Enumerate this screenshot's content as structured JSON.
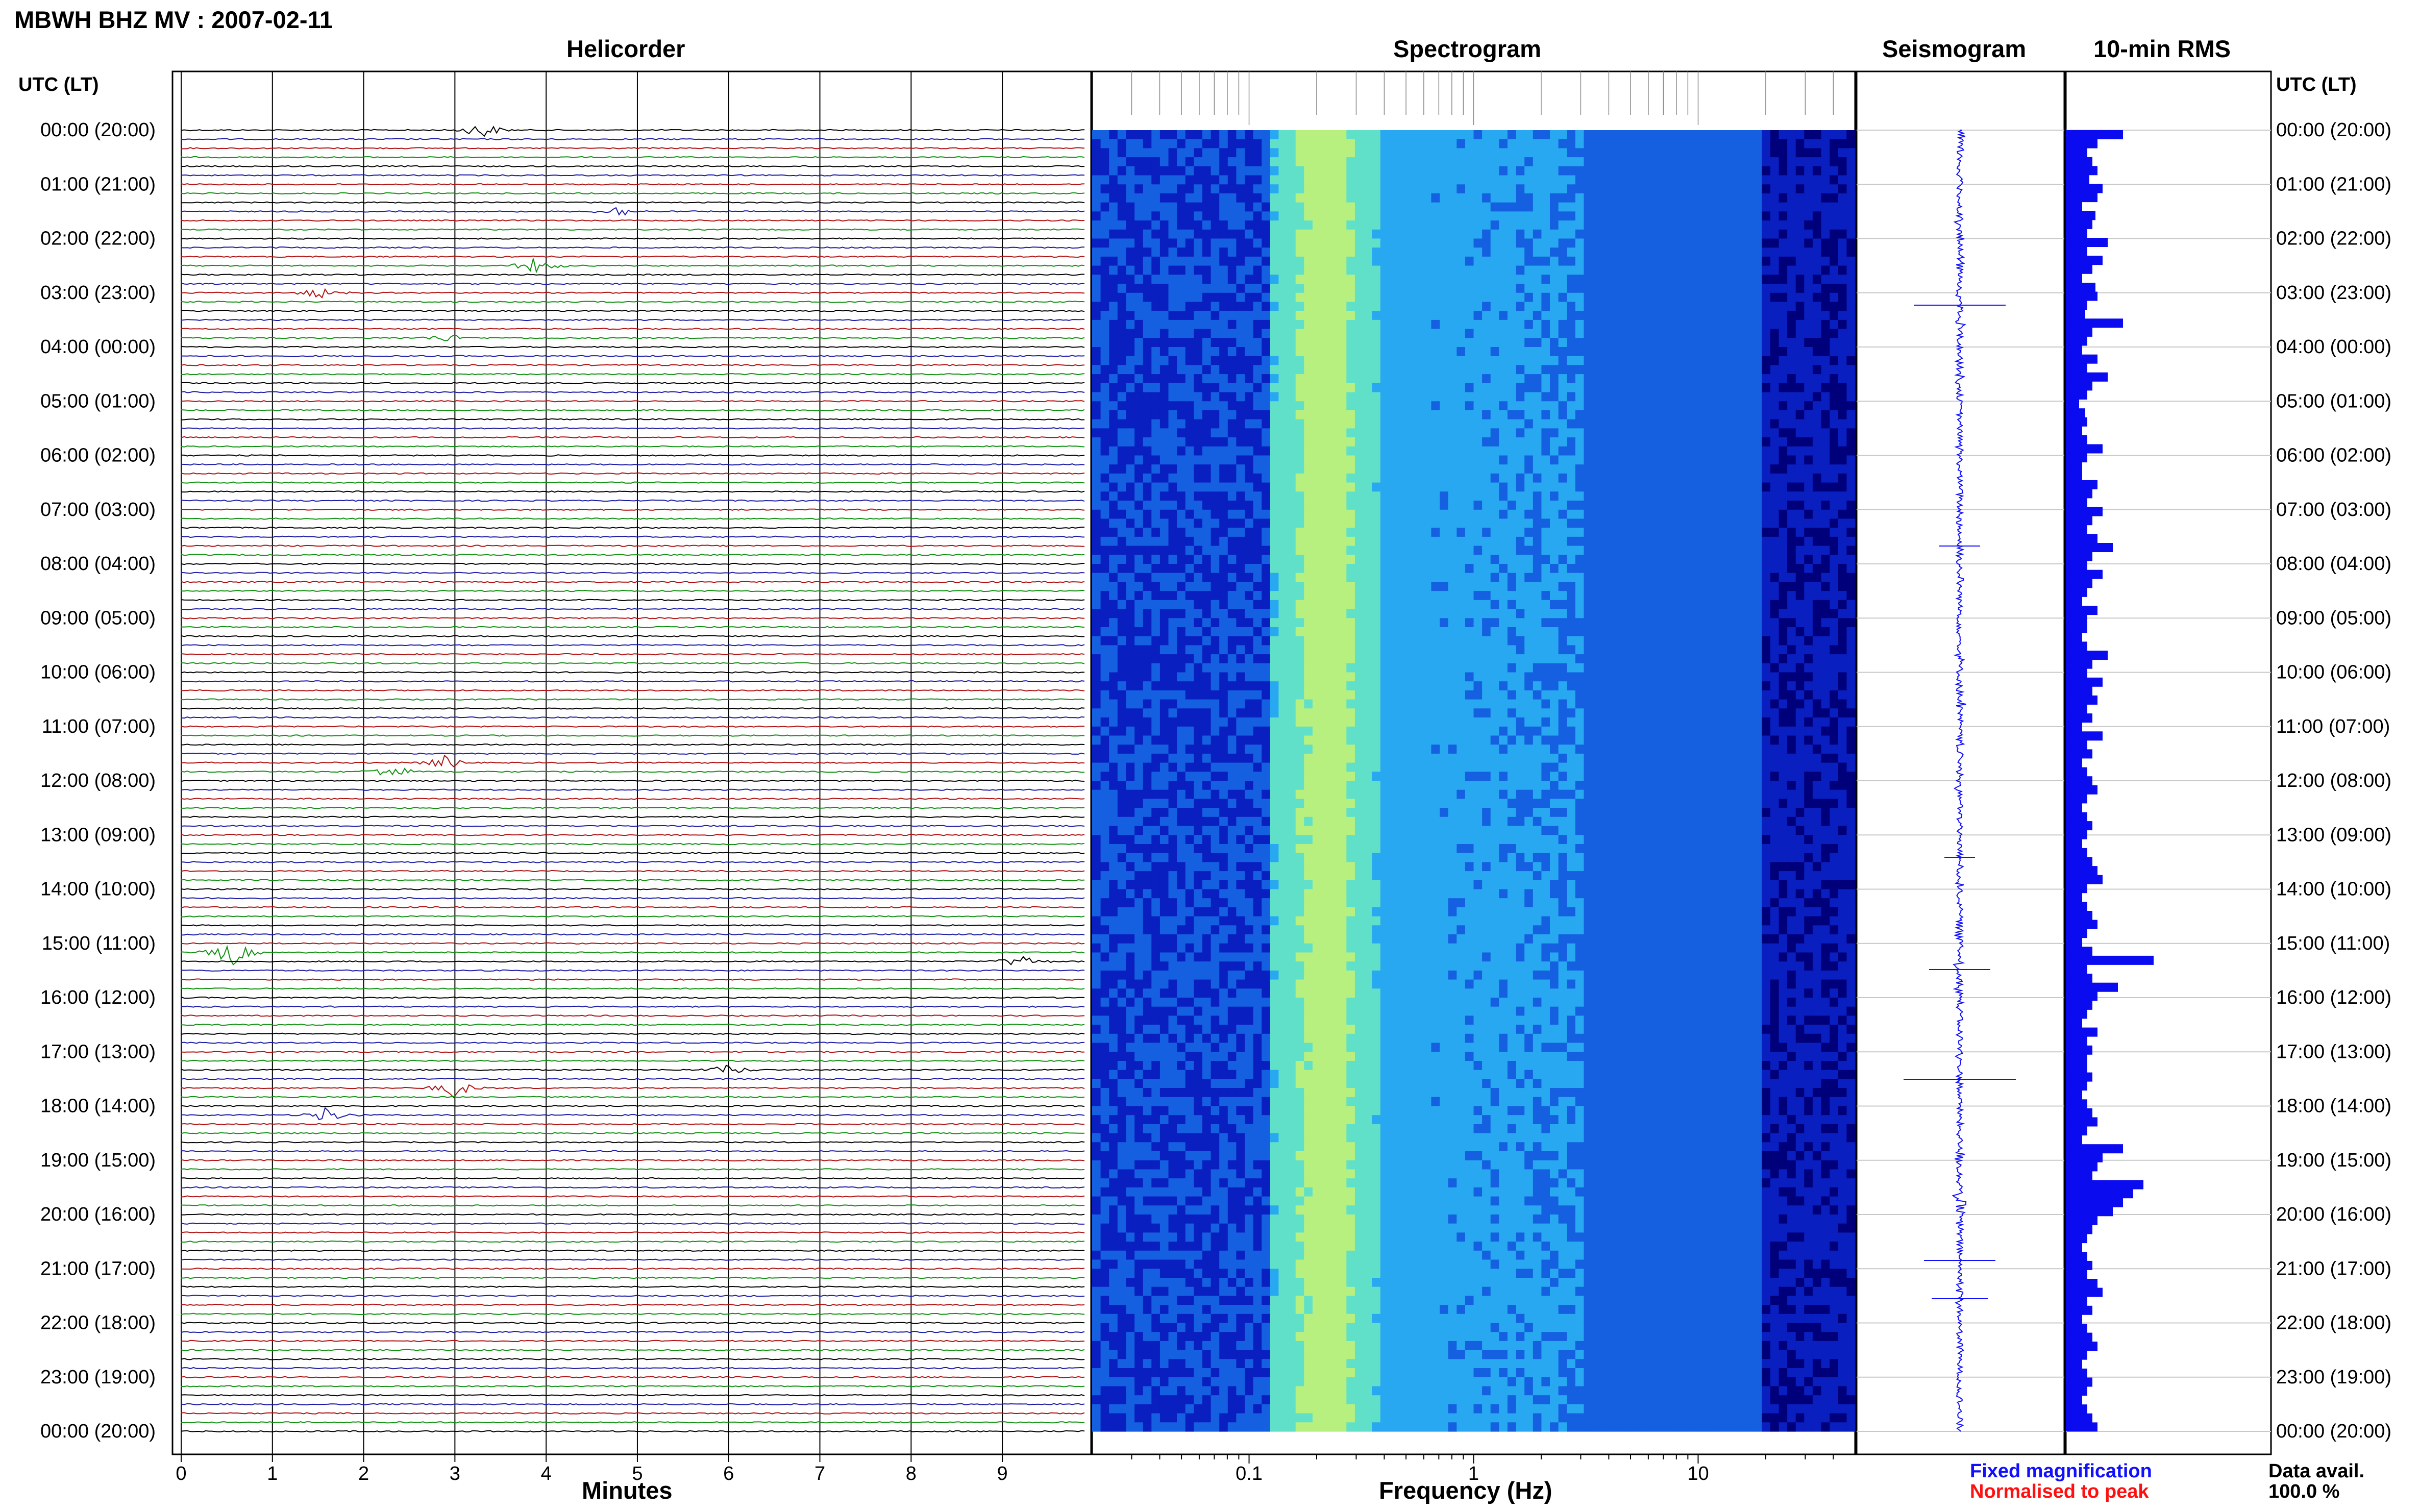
{
  "header": {
    "title": "MBWH BHZ MV : 2007-02-11",
    "utc_label": "UTC (LT)",
    "utc_label_right": "UTC (LT)"
  },
  "panels": {
    "helicorder": "Helicorder",
    "spectrogram": "Spectrogram",
    "seismogram": "Seismogram",
    "rms": "10-min RMS"
  },
  "legend": {
    "fixed": "Fixed magnification",
    "normalised": "Normalised to peak",
    "fixed_color": "#1010ff",
    "normalised_color": "#ff1010"
  },
  "data_avail": {
    "label": "Data avail.",
    "value": "100.0 %"
  },
  "chart_data": [
    {
      "type": "line",
      "panel": "Helicorder",
      "xlabel": "Minutes",
      "x_ticks": [
        0,
        1,
        2,
        3,
        4,
        5,
        6,
        7,
        8,
        9
      ],
      "xlim": [
        0,
        10
      ],
      "time_labels": [
        "00:00 (20:00)",
        "01:00 (21:00)",
        "02:00 (22:00)",
        "03:00 (23:00)",
        "04:00 (00:00)",
        "05:00 (01:00)",
        "06:00 (02:00)",
        "07:00 (03:00)",
        "08:00 (04:00)",
        "09:00 (05:00)",
        "10:00 (06:00)",
        "11:00 (07:00)",
        "12:00 (08:00)",
        "13:00 (09:00)",
        "14:00 (10:00)",
        "15:00 (11:00)",
        "16:00 (12:00)",
        "17:00 (13:00)",
        "18:00 (14:00)",
        "19:00 (15:00)",
        "20:00 (16:00)",
        "21:00 (17:00)",
        "22:00 (18:00)",
        "23:00 (19:00)",
        "00:00 (20:00)"
      ],
      "trace_colors": [
        "#000000",
        "#1a1aa6",
        "#b01010",
        "#109010"
      ],
      "events": [
        {
          "row": 0,
          "minute": 3.3,
          "amp": 0.6
        },
        {
          "row": 9,
          "minute": 4.8,
          "amp": 0.4
        },
        {
          "row": 15,
          "minute": 3.9,
          "amp": 0.6
        },
        {
          "row": 18,
          "minute": 1.5,
          "amp": 0.4
        },
        {
          "row": 23,
          "minute": 2.9,
          "amp": 0.3
        },
        {
          "row": 71,
          "minute": 2.3,
          "amp": 0.6
        },
        {
          "row": 70,
          "minute": 2.9,
          "amp": 0.5
        },
        {
          "row": 91,
          "minute": 0.55,
          "amp": 1.0
        },
        {
          "row": 92,
          "minute": 9.2,
          "amp": 0.5
        },
        {
          "row": 104,
          "minute": 6.0,
          "amp": 0.4
        },
        {
          "row": 106,
          "minute": 3.0,
          "amp": 0.7
        },
        {
          "row": 109,
          "minute": 1.6,
          "amp": 0.6
        }
      ]
    },
    {
      "type": "heatmap",
      "panel": "Spectrogram",
      "xlabel": "Frequency (Hz)",
      "x_scale": "log",
      "x_tick_labels": [
        "0.1",
        "1",
        "10"
      ],
      "x_ticks": [
        0.1,
        1,
        10
      ],
      "xlim": [
        0.02,
        50
      ],
      "colormap": [
        "#00007a",
        "#0a1fc0",
        "#1560e0",
        "#28a8f0",
        "#60e0c8",
        "#b8f080"
      ],
      "peak_band_hz": [
        0.15,
        0.35
      ]
    },
    {
      "type": "line",
      "panel": "Seismogram",
      "description_colors": [
        "#1010ff"
      ]
    },
    {
      "type": "bar",
      "panel": "10-min RMS",
      "orientation": "horizontal",
      "values": [
        0.55,
        0.3,
        0.2,
        0.25,
        0.3,
        0.22,
        0.35,
        0.3,
        0.15,
        0.28,
        0.25,
        0.2,
        0.4,
        0.2,
        0.35,
        0.25,
        0.15,
        0.28,
        0.3,
        0.2,
        0.18,
        0.55,
        0.25,
        0.2,
        0.15,
        0.3,
        0.2,
        0.4,
        0.25,
        0.2,
        0.12,
        0.18,
        0.2,
        0.15,
        0.2,
        0.35,
        0.2,
        0.15,
        0.15,
        0.3,
        0.25,
        0.2,
        0.35,
        0.25,
        0.2,
        0.3,
        0.45,
        0.25,
        0.2,
        0.35,
        0.25,
        0.2,
        0.15,
        0.3,
        0.2,
        0.2,
        0.15,
        0.2,
        0.4,
        0.25,
        0.2,
        0.35,
        0.25,
        0.3,
        0.2,
        0.25,
        0.15,
        0.35,
        0.2,
        0.25,
        0.15,
        0.2,
        0.25,
        0.3,
        0.2,
        0.15,
        0.2,
        0.25,
        0.2,
        0.15,
        0.2,
        0.25,
        0.3,
        0.35,
        0.2,
        0.15,
        0.2,
        0.25,
        0.3,
        0.2,
        0.15,
        0.25,
        0.85,
        0.2,
        0.25,
        0.5,
        0.3,
        0.25,
        0.2,
        0.15,
        0.3,
        0.2,
        0.25,
        0.2,
        0.2,
        0.25,
        0.2,
        0.15,
        0.2,
        0.25,
        0.3,
        0.2,
        0.15,
        0.55,
        0.35,
        0.3,
        0.25,
        0.75,
        0.65,
        0.55,
        0.45,
        0.3,
        0.25,
        0.2,
        0.15,
        0.2,
        0.25,
        0.2,
        0.3,
        0.35,
        0.2,
        0.25,
        0.15,
        0.2,
        0.25,
        0.3,
        0.2,
        0.15,
        0.2,
        0.25,
        0.2,
        0.15,
        0.2,
        0.25,
        0.3
      ],
      "color": "#0b0bf0"
    }
  ]
}
